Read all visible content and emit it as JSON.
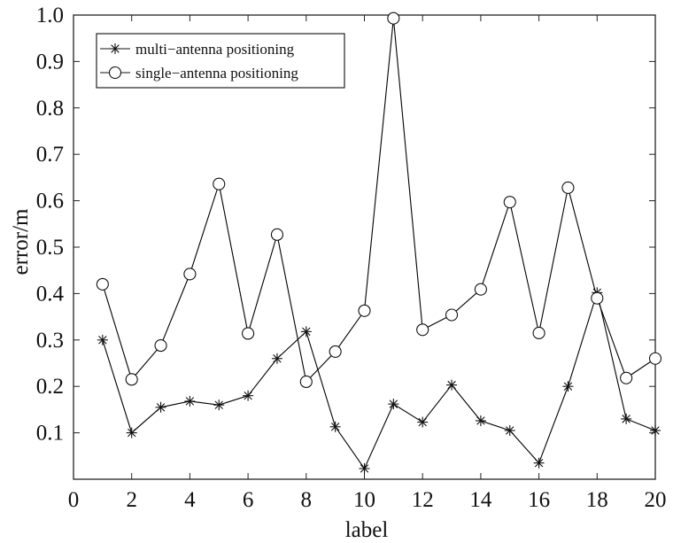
{
  "chart_data": {
    "type": "line",
    "title": "",
    "xlabel": "label",
    "ylabel": "error/m",
    "xlim": [
      0,
      20
    ],
    "ylim": [
      0,
      1.0
    ],
    "xticks": [
      0,
      2,
      4,
      6,
      8,
      10,
      12,
      14,
      16,
      18,
      20
    ],
    "yticks": [
      0.1,
      0.2,
      0.3,
      0.4,
      0.5,
      0.6,
      0.7,
      0.8,
      0.9,
      1.0
    ],
    "xtick_labels": [
      "0",
      "2",
      "4",
      "6",
      "8",
      "10",
      "12",
      "14",
      "16",
      "18",
      "20"
    ],
    "ytick_labels": [
      "0.1",
      "0.2",
      "0.3",
      "0.4",
      "0.5",
      "0.6",
      "0.7",
      "0.8",
      "0.9",
      "1.0"
    ],
    "grid": false,
    "legend_position": "top-left",
    "x": [
      1,
      2,
      3,
      4,
      5,
      6,
      7,
      8,
      9,
      10,
      11,
      12,
      13,
      14,
      15,
      16,
      17,
      18,
      19,
      20
    ],
    "series": [
      {
        "name": "multi−antenna positioning",
        "marker": "asterisk",
        "color": "#000000",
        "values": [
          0.3,
          0.1,
          0.155,
          0.168,
          0.16,
          0.18,
          0.26,
          0.318,
          0.113,
          0.023,
          0.162,
          0.123,
          0.203,
          0.126,
          0.105,
          0.035,
          0.2,
          0.402,
          0.13,
          0.105
        ]
      },
      {
        "name": "single−antenna positioning",
        "marker": "circle",
        "color": "#000000",
        "values": [
          0.42,
          0.215,
          0.288,
          0.442,
          0.636,
          0.314,
          0.527,
          0.21,
          0.275,
          0.363,
          0.993,
          0.322,
          0.354,
          0.409,
          0.597,
          0.315,
          0.628,
          0.39,
          0.218,
          0.26
        ]
      }
    ]
  }
}
